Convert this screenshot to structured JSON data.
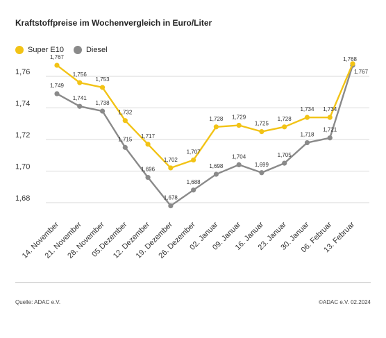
{
  "title": "Kraftstoffpreise im Wochenvergleich in Euro/Liter",
  "legend": [
    {
      "label": "Super E10",
      "color": "#f2c316"
    },
    {
      "label": "Diesel",
      "color": "#8a8a8a"
    }
  ],
  "footer": {
    "source": "Quelle: ADAC e.V.",
    "copyright": "©ADAC e.V. 02.2024"
  },
  "chart_data": {
    "type": "line",
    "categories": [
      "14. November",
      "21. November",
      "28. November",
      "05.Dezember",
      "12. Dezember",
      "19. Dezember",
      "26. Dezember",
      "02. Januar",
      "09. Januar",
      "16. Januar",
      "23. Januar",
      "30. Januar",
      "06. Februar",
      "13. Februar"
    ],
    "series": [
      {
        "name": "Super E10",
        "color": "#f2c316",
        "values": [
          1.767,
          1.756,
          1.753,
          1.732,
          1.717,
          1.702,
          1.707,
          1.728,
          1.729,
          1.725,
          1.728,
          1.734,
          1.734,
          1.768
        ],
        "labels": [
          "1,767",
          "1,756",
          "1,753",
          "1,732",
          "1,717",
          "1,702",
          "1,707",
          "1,728",
          "1,729",
          "1,725",
          "1,728",
          "1,734",
          "1,734",
          "1,768"
        ]
      },
      {
        "name": "Diesel",
        "color": "#8a8a8a",
        "values": [
          1.749,
          1.741,
          1.738,
          1.715,
          1.696,
          1.678,
          1.688,
          1.698,
          1.704,
          1.699,
          1.705,
          1.718,
          1.721,
          1.767
        ],
        "labels": [
          "1,749",
          "1,741",
          "1,738",
          "1,715",
          "1,696",
          "1,678",
          "1,688",
          "1,698",
          "1,704",
          "1,699",
          "1,705",
          "1,718",
          "1,721",
          "1,767"
        ]
      }
    ],
    "yticks": [
      1.68,
      1.7,
      1.72,
      1.74,
      1.76
    ],
    "ytick_labels": [
      "1,68",
      "1,70",
      "1,72",
      "1,74",
      "1,76"
    ],
    "ylim": [
      1.672,
      1.776
    ],
    "grid": true,
    "legend_position": "top-left"
  }
}
